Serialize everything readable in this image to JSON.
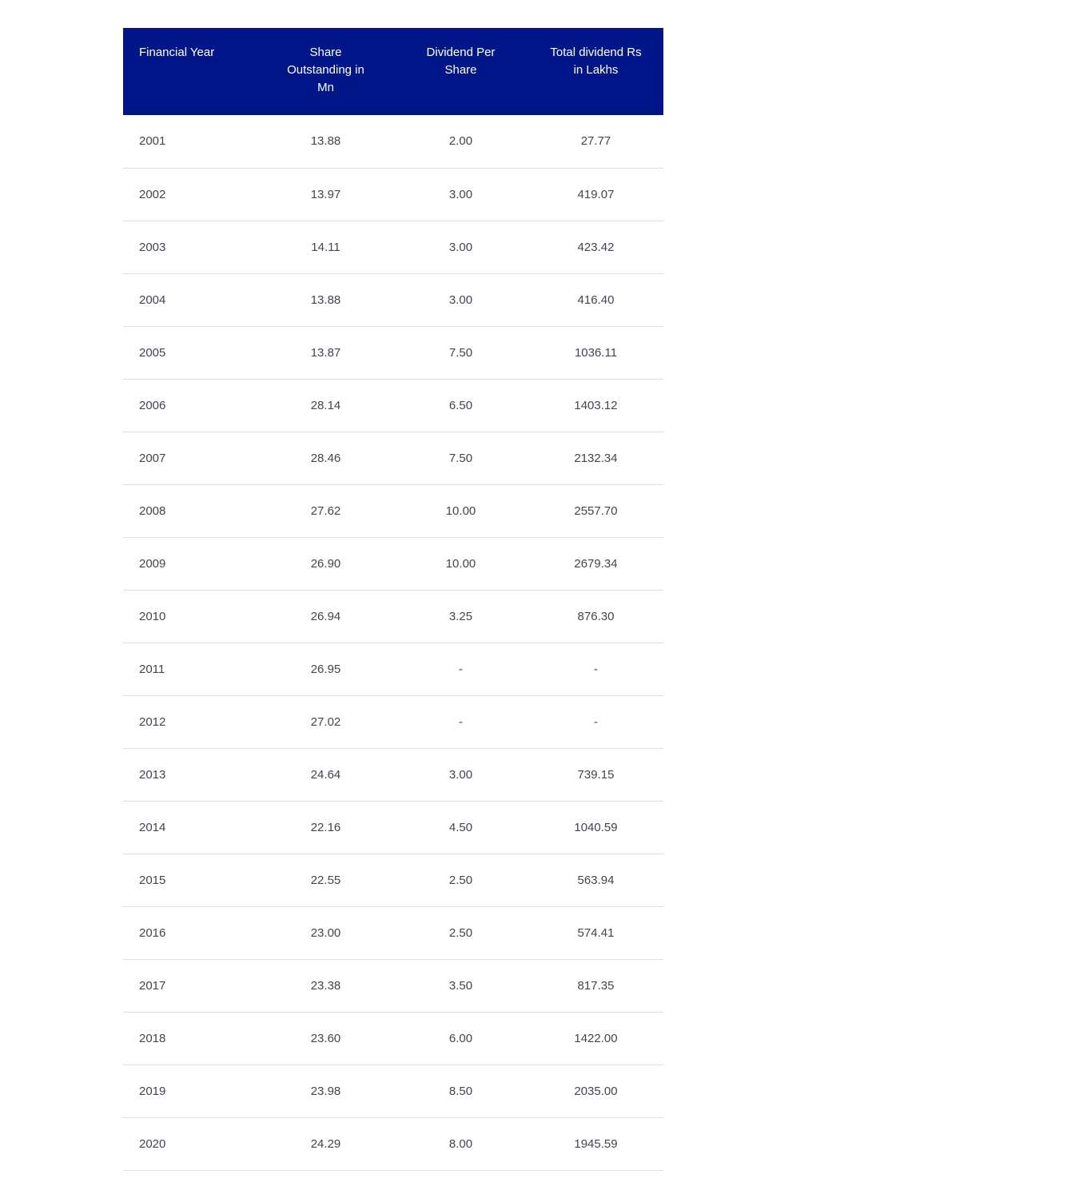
{
  "chart_data": {
    "type": "table",
    "columns": [
      "Financial Year",
      "Share Outstanding in Mn",
      "Dividend Per Share",
      "Total dividend Rs in Lakhs"
    ],
    "rows": [
      [
        "2001",
        "13.88",
        "2.00",
        "27.77"
      ],
      [
        "2002",
        "13.97",
        "3.00",
        "419.07"
      ],
      [
        "2003",
        "14.11",
        "3.00",
        "423.42"
      ],
      [
        "2004",
        "13.88",
        "3.00",
        "416.40"
      ],
      [
        "2005",
        "13.87",
        "7.50",
        "1036.11"
      ],
      [
        "2006",
        "28.14",
        "6.50",
        "1403.12"
      ],
      [
        "2007",
        "28.46",
        "7.50",
        "2132.34"
      ],
      [
        "2008",
        "27.62",
        "10.00",
        "2557.70"
      ],
      [
        "2009",
        "26.90",
        "10.00",
        "2679.34"
      ],
      [
        "2010",
        "26.94",
        "3.25",
        "876.30"
      ],
      [
        "2011",
        "26.95",
        "-",
        "-"
      ],
      [
        "2012",
        "27.02",
        "-",
        "-"
      ],
      [
        "2013",
        "24.64",
        "3.00",
        "739.15"
      ],
      [
        "2014",
        "22.16",
        "4.50",
        "1040.59"
      ],
      [
        "2015",
        "22.55",
        "2.50",
        "563.94"
      ],
      [
        "2016",
        "23.00",
        "2.50",
        "574.41"
      ],
      [
        "2017",
        "23.38",
        "3.50",
        "817.35"
      ],
      [
        "2018",
        "23.60",
        "6.00",
        "1422.00"
      ],
      [
        "2019",
        "23.98",
        "8.50",
        "2035.00"
      ],
      [
        "2020",
        "24.29",
        "8.00",
        "1945.59"
      ]
    ],
    "missing_value_marker": "-",
    "layout_hints": {
      "grid": "horizontal row separators only",
      "header_position": "top"
    }
  },
  "table": {
    "header_display": [
      "Financial Year",
      "Share\nOutstanding in\nMn",
      "Dividend Per\nShare",
      "Total dividend Rs\nin Lakhs"
    ],
    "column_alignments": [
      "left",
      "center",
      "center",
      "center"
    ]
  },
  "colors": {
    "header_background": "#001689",
    "header_text": "#ffffff",
    "body_text": "#414550",
    "row_border": "#e0e0e0",
    "page_background": "#ffffff"
  }
}
